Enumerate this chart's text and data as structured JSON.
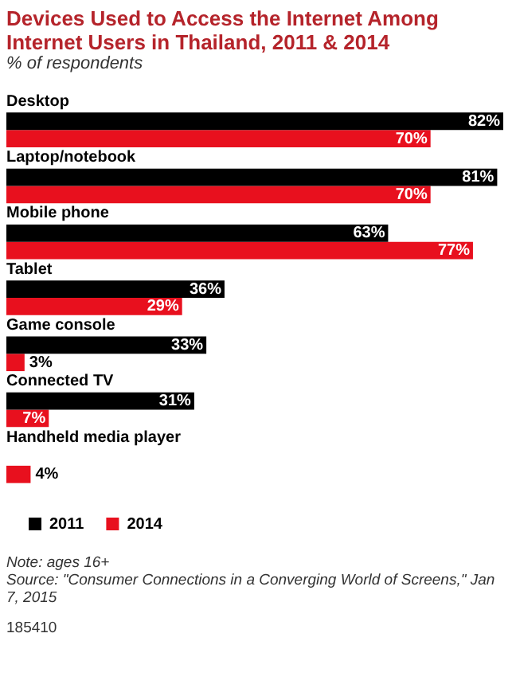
{
  "chart_data": {
    "type": "bar",
    "orientation": "horizontal",
    "title": "Devices Used to Access the Internet Among Internet Users in Thailand, 2011 & 2014",
    "subtitle": "% of respondents",
    "categories": [
      "Desktop",
      "Laptop/notebook",
      "Mobile phone",
      "Tablet",
      "Game console",
      "Connected TV",
      "Handheld media player"
    ],
    "series": [
      {
        "name": "2011",
        "color": "#000000",
        "values": [
          82,
          81,
          63,
          36,
          33,
          31,
          null
        ],
        "value_labels": [
          "82%",
          "81%",
          "63%",
          "36%",
          "33%",
          "31%",
          null
        ]
      },
      {
        "name": "2014",
        "color": "#e8101e",
        "values": [
          70,
          70,
          77,
          29,
          3,
          7,
          4
        ],
        "value_labels": [
          "70%",
          "70%",
          "77%",
          "29%",
          "3%",
          "7%",
          "4%"
        ]
      }
    ],
    "xlim": [
      0,
      82
    ],
    "grid": false,
    "legend": "bottom left",
    "annotations": [
      "Note: ages 16+",
      "Source: \"Consumer Connections in a Converging World of Screens,\" Jan 7, 2015",
      "185410"
    ]
  }
}
